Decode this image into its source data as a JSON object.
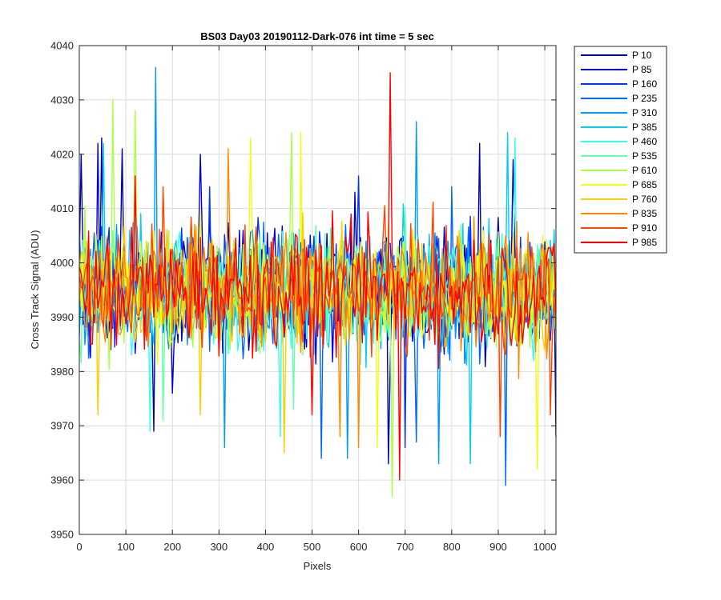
{
  "chart_data": {
    "type": "line",
    "title": "BS03 Day03 20190112-Dark-076 int time = 5 sec",
    "xlabel": "Pixels",
    "ylabel": "Cross Track Signal (ADU)",
    "xlim": [
      0,
      1024
    ],
    "ylim": [
      3950,
      4040
    ],
    "xticks": [
      0,
      100,
      200,
      300,
      400,
      500,
      600,
      700,
      800,
      900,
      1000
    ],
    "yticks": [
      3950,
      3960,
      3970,
      3980,
      3990,
      4000,
      4010,
      4020,
      4030,
      4040
    ],
    "grid": true,
    "legend_position": "outside-top-right",
    "x_step": 4,
    "series": [
      {
        "name": "P 10",
        "color": "#0000AA",
        "mean": 3995,
        "spread": 5.5,
        "extremes": [
          [
            2,
            4020
          ],
          [
            48,
            4023
          ],
          [
            92,
            4021
          ],
          [
            160,
            3969
          ],
          [
            590,
            4013
          ],
          [
            665,
            3963
          ],
          [
            860,
            4022
          ],
          [
            1024,
            3968
          ]
        ]
      },
      {
        "name": "P 85",
        "color": "#0000DD",
        "mean": 3995,
        "spread": 5.5,
        "extremes": [
          [
            40,
            4022
          ],
          [
            258,
            4020
          ],
          [
            930,
            4019
          ],
          [
            200,
            3976
          ]
        ]
      },
      {
        "name": "P 160",
        "color": "#0033FF",
        "mean": 3995,
        "spread": 5.5,
        "extremes": [
          [
            280,
            4014
          ],
          [
            600,
            4016
          ],
          [
            700,
            3966
          ]
        ]
      },
      {
        "name": "P 235",
        "color": "#0066FF",
        "mean": 3995,
        "spread": 5.5,
        "extremes": [
          [
            520,
            3964
          ],
          [
            722,
            3967
          ],
          [
            915,
            3959
          ],
          [
            800,
            4014
          ]
        ]
      },
      {
        "name": "P 310",
        "color": "#0099FF",
        "mean": 3995,
        "spread": 5.5,
        "extremes": [
          [
            162,
            4036
          ],
          [
            722,
            4026
          ],
          [
            310,
            3966
          ],
          [
            575,
            3964
          ],
          [
            770,
            3963
          ]
        ]
      },
      {
        "name": "P 385",
        "color": "#00CCFF",
        "mean": 3995,
        "spread": 5.5,
        "extremes": [
          [
            52,
            4022
          ],
          [
            918,
            4024
          ],
          [
            840,
            3963
          ]
        ]
      },
      {
        "name": "P 460",
        "color": "#33FFEE",
        "mean": 3995,
        "spread": 5.5,
        "extremes": [
          [
            150,
            3969
          ],
          [
            935,
            4023
          ],
          [
            430,
            3968
          ]
        ]
      },
      {
        "name": "P 535",
        "color": "#66FFAA",
        "mean": 3995,
        "spread": 5.5,
        "extremes": [
          [
            180,
            3971
          ],
          [
            460,
            3973
          ]
        ]
      },
      {
        "name": "P 610",
        "color": "#AAFF44",
        "mean": 3995,
        "spread": 5.5,
        "extremes": [
          [
            72,
            4030
          ],
          [
            118,
            4028
          ],
          [
            672,
            3957
          ],
          [
            455,
            4024
          ]
        ]
      },
      {
        "name": "P 685",
        "color": "#EEFF11",
        "mean": 3995,
        "spread": 5.5,
        "extremes": [
          [
            368,
            4023
          ],
          [
            476,
            4024
          ],
          [
            985,
            3962
          ],
          [
            640,
            3966
          ]
        ]
      },
      {
        "name": "P 760",
        "color": "#FFCC00",
        "mean": 3995,
        "spread": 5.5,
        "extremes": [
          [
            440,
            3965
          ],
          [
            40,
            3972
          ],
          [
            260,
            3972
          ]
        ]
      },
      {
        "name": "P 835",
        "color": "#FF8800",
        "mean": 3995,
        "spread": 5.5,
        "extremes": [
          [
            318,
            4021
          ],
          [
            560,
            3968
          ],
          [
            600,
            3966
          ]
        ]
      },
      {
        "name": "P 910",
        "color": "#FF4400",
        "mean": 3995,
        "spread": 5.5,
        "extremes": [
          [
            905,
            3968
          ],
          [
            1010,
            3972
          ],
          [
            180,
            4014
          ]
        ]
      },
      {
        "name": "P 985",
        "color": "#FF0000",
        "mean": 3995,
        "spread": 5.5,
        "extremes": [
          [
            668,
            4035
          ],
          [
            686,
            3960
          ],
          [
            120,
            4016
          ],
          [
            500,
            3972
          ]
        ]
      }
    ]
  }
}
